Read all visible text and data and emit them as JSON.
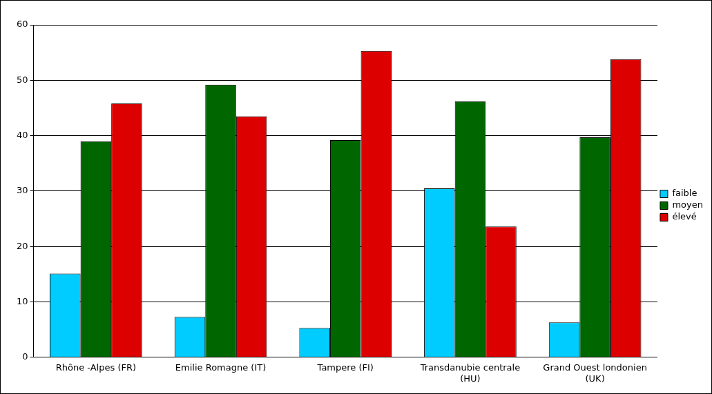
{
  "chart_data": {
    "type": "bar",
    "categories": [
      "Rhône -Alpes (FR)",
      "Emilie Romagne (IT)",
      "Tampere (FI)",
      "Transdanubie centrale (HU)",
      "Grand Ouest londonien (UK)"
    ],
    "series": [
      {
        "name": "faible",
        "color": "#00ccff",
        "values": [
          15.1,
          7.3,
          5.3,
          30.5,
          6.3
        ]
      },
      {
        "name": "moyen",
        "color": "#006600",
        "values": [
          39.0,
          49.2,
          39.2,
          46.2,
          39.7
        ]
      },
      {
        "name": "élevé",
        "color": "#dd0000",
        "values": [
          45.8,
          43.5,
          55.3,
          23.6,
          53.8
        ]
      }
    ],
    "ylim": [
      0,
      60
    ],
    "yticks": [
      0,
      10,
      20,
      30,
      40,
      50,
      60
    ],
    "grid": "y",
    "legend": "right"
  }
}
